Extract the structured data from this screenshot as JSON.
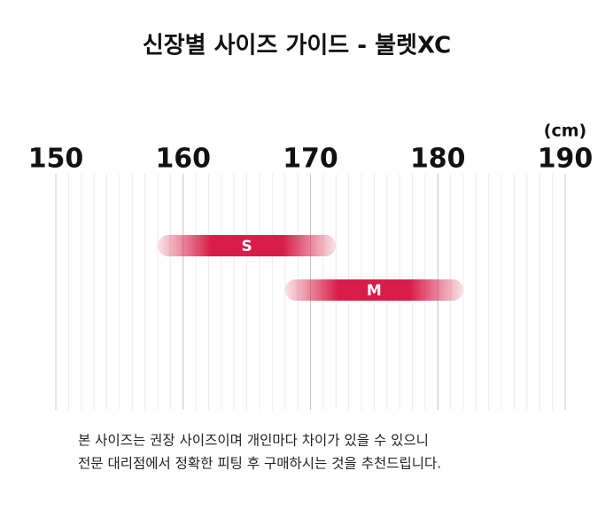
{
  "chart_data": {
    "type": "range-bar",
    "title": "신장별 사이즈 가이드 - 불렛XC",
    "x_unit": "(cm)",
    "categories": [
      "S",
      "M"
    ],
    "low": [
      158,
      168
    ],
    "high": [
      172,
      182
    ],
    "color": "#d81e48",
    "xlim": [
      150,
      190
    ],
    "xticks": [
      150,
      160,
      170,
      180,
      190
    ],
    "minor_xticks": [
      150,
      151,
      152,
      153,
      154,
      155,
      156,
      157,
      158,
      159,
      160,
      161,
      162,
      163,
      164,
      165,
      166,
      167,
      168,
      169,
      170,
      171,
      172,
      173,
      174,
      175,
      176,
      177,
      178,
      179,
      180,
      181,
      182,
      183,
      184,
      185,
      186,
      187,
      188,
      189,
      190
    ],
    "grid": true,
    "notes": [
      "본 사이즈는 권장 사이즈이며 개인마다 차이가 있을 수 있으니",
      "전문 대리점에서 정확한 피팅 후 구매하시는 것을 추천드립니다."
    ]
  }
}
